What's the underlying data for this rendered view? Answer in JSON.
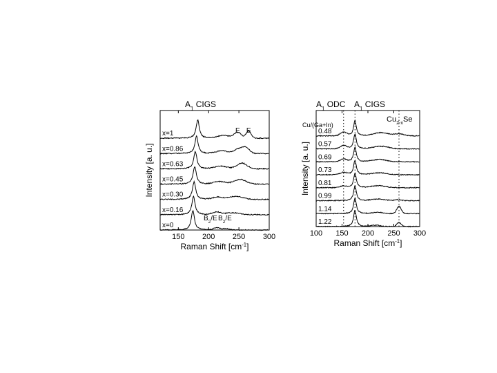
{
  "chart_data": [
    {
      "type": "line",
      "title": "A",
      "title_sub": "1",
      "title_rest": " CIGS",
      "xlabel": "Raman Shift [cm",
      "xlabel_sup": "-1",
      "xlabel_end": "]",
      "ylabel": "Intensity [a. u.]",
      "xlim": [
        120,
        300
      ],
      "xticks": [
        150,
        200,
        250,
        300
      ],
      "xtick_labels": [
        "150",
        "200",
        "250",
        "300"
      ],
      "grid": false,
      "annotations": [
        {
          "text": "E",
          "x": 248
        },
        {
          "text": "E",
          "x": 266
        },
        {
          "text": "B",
          "sub": "2",
          "rest": "/E",
          "x": 203
        },
        {
          "text": "B",
          "sub": "2",
          "rest": "/E",
          "x": 227
        }
      ],
      "series": [
        {
          "label": "x=1",
          "peak": 182,
          "peak_height": 0.95,
          "bumps": [
            [
              248,
              0.3,
              8
            ],
            [
              266,
              0.38,
              6
            ],
            [
              225,
              0.15,
              14
            ]
          ]
        },
        {
          "label": "x=0.86",
          "peak": 180,
          "peak_height": 0.9,
          "bumps": [
            [
              250,
              0.25,
              10
            ],
            [
              262,
              0.28,
              8
            ],
            [
              222,
              0.14,
              14
            ]
          ]
        },
        {
          "label": "x=0.63",
          "peak": 178,
          "peak_height": 0.9,
          "bumps": [
            [
              255,
              0.3,
              12
            ],
            [
              220,
              0.14,
              14
            ]
          ]
        },
        {
          "label": "x=0.45",
          "peak": 177,
          "peak_height": 0.92,
          "bumps": [
            [
              252,
              0.24,
              14
            ],
            [
              218,
              0.13,
              14
            ]
          ]
        },
        {
          "label": "x=0.30",
          "peak": 176,
          "peak_height": 0.92,
          "bumps": [
            [
              245,
              0.16,
              16
            ],
            [
              215,
              0.12,
              12
            ]
          ]
        },
        {
          "label": "x=0.16",
          "peak": 175,
          "peak_height": 0.95,
          "bumps": [
            [
              240,
              0.1,
              16
            ],
            [
              213,
              0.14,
              10
            ]
          ]
        },
        {
          "label": "x=0",
          "peak": 174,
          "peak_height": 1.0,
          "bumps": [
            [
              213,
              0.12,
              7
            ],
            [
              228,
              0.07,
              8
            ]
          ]
        }
      ]
    },
    {
      "type": "line",
      "title": "A",
      "title_sub": "1",
      "title_rest": " CIGS",
      "title2": "A",
      "title2_sub": "1",
      "title2_rest": " ODC",
      "title3": "Cu",
      "title3_sub": "2-x",
      "title3_rest": "Se",
      "legend_title": "Cu/(Ga+In)",
      "xlabel": "Raman Shift [cm",
      "xlabel_sup": "-1",
      "xlabel_end": "]",
      "ylabel": "Intensity [a. u.]",
      "xlim": [
        100,
        300
      ],
      "xticks": [
        100,
        150,
        200,
        250,
        300
      ],
      "xtick_labels": [
        "100",
        "150",
        "200",
        "250",
        "300"
      ],
      "dotted_lines": [
        153,
        175,
        260
      ],
      "grid": false,
      "series": [
        {
          "label": "0.48",
          "peak": 175,
          "peak_height": 0.95,
          "bumps": [
            [
              153,
              0.22,
              9
            ],
            [
              225,
              0.2,
              20
            ],
            [
              260,
              0.12,
              14
            ]
          ]
        },
        {
          "label": "0.57",
          "peak": 175,
          "peak_height": 0.92,
          "bumps": [
            [
              153,
              0.2,
              9
            ],
            [
              225,
              0.16,
              20
            ]
          ]
        },
        {
          "label": "0.69",
          "peak": 175,
          "peak_height": 0.9,
          "bumps": [
            [
              153,
              0.16,
              9
            ],
            [
              222,
              0.14,
              20
            ]
          ]
        },
        {
          "label": "0.73",
          "peak": 175,
          "peak_height": 0.9,
          "bumps": [
            [
              153,
              0.14,
              9
            ],
            [
              222,
              0.12,
              20
            ]
          ]
        },
        {
          "label": "0.81",
          "peak": 175,
          "peak_height": 0.9,
          "bumps": [
            [
              153,
              0.1,
              9
            ],
            [
              220,
              0.12,
              20
            ]
          ]
        },
        {
          "label": "0.99",
          "peak": 175,
          "peak_height": 0.92,
          "bumps": [
            [
              220,
              0.1,
              18
            ],
            [
              258,
              0.06,
              8
            ]
          ]
        },
        {
          "label": "1.14",
          "peak": 175,
          "peak_height": 0.95,
          "bumps": [
            [
              220,
              0.08,
              14
            ],
            [
              260,
              0.45,
              6
            ]
          ]
        },
        {
          "label": "1.22",
          "peak": 175,
          "peak_height": 1.0,
          "bumps": [
            [
              215,
              0.08,
              12
            ],
            [
              260,
              0.25,
              6
            ]
          ]
        }
      ]
    }
  ]
}
